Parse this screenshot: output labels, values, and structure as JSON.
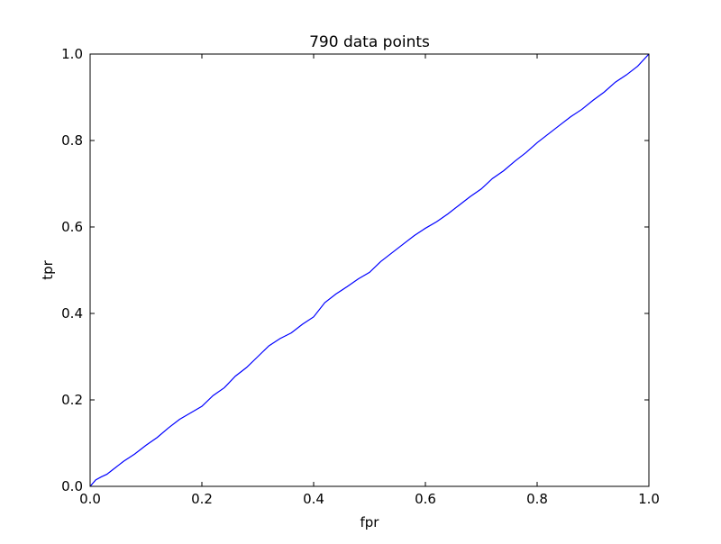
{
  "chart_data": {
    "type": "line",
    "title": "790 data points",
    "xlabel": "fpr",
    "ylabel": "tpr",
    "xlim": [
      0.0,
      1.0
    ],
    "ylim": [
      0.0,
      1.0
    ],
    "xticks": [
      "0.0",
      "0.2",
      "0.4",
      "0.6",
      "0.8",
      "1.0"
    ],
    "yticks": [
      "0.0",
      "0.2",
      "0.4",
      "0.6",
      "0.8",
      "1.0"
    ],
    "grid": false,
    "legend": "none",
    "series": [
      {
        "color": "#0000ff",
        "x": [
          0.0,
          0.01,
          0.02,
          0.03,
          0.04,
          0.05,
          0.06,
          0.08,
          0.1,
          0.12,
          0.14,
          0.16,
          0.18,
          0.2,
          0.22,
          0.24,
          0.26,
          0.28,
          0.3,
          0.32,
          0.34,
          0.36,
          0.38,
          0.4,
          0.42,
          0.44,
          0.46,
          0.48,
          0.5,
          0.52,
          0.54,
          0.56,
          0.58,
          0.6,
          0.62,
          0.64,
          0.66,
          0.68,
          0.7,
          0.72,
          0.74,
          0.76,
          0.78,
          0.8,
          0.82,
          0.84,
          0.86,
          0.88,
          0.9,
          0.92,
          0.94,
          0.96,
          0.98,
          1.0
        ],
        "y": [
          0.0,
          0.015,
          0.022,
          0.028,
          0.038,
          0.048,
          0.058,
          0.075,
          0.095,
          0.113,
          0.135,
          0.155,
          0.17,
          0.185,
          0.21,
          0.228,
          0.255,
          0.275,
          0.3,
          0.325,
          0.342,
          0.355,
          0.375,
          0.392,
          0.425,
          0.445,
          0.462,
          0.48,
          0.495,
          0.52,
          0.54,
          0.56,
          0.58,
          0.597,
          0.612,
          0.63,
          0.65,
          0.67,
          0.688,
          0.712,
          0.73,
          0.752,
          0.772,
          0.795,
          0.815,
          0.835,
          0.855,
          0.872,
          0.893,
          0.912,
          0.935,
          0.952,
          0.972,
          1.0
        ]
      }
    ]
  }
}
